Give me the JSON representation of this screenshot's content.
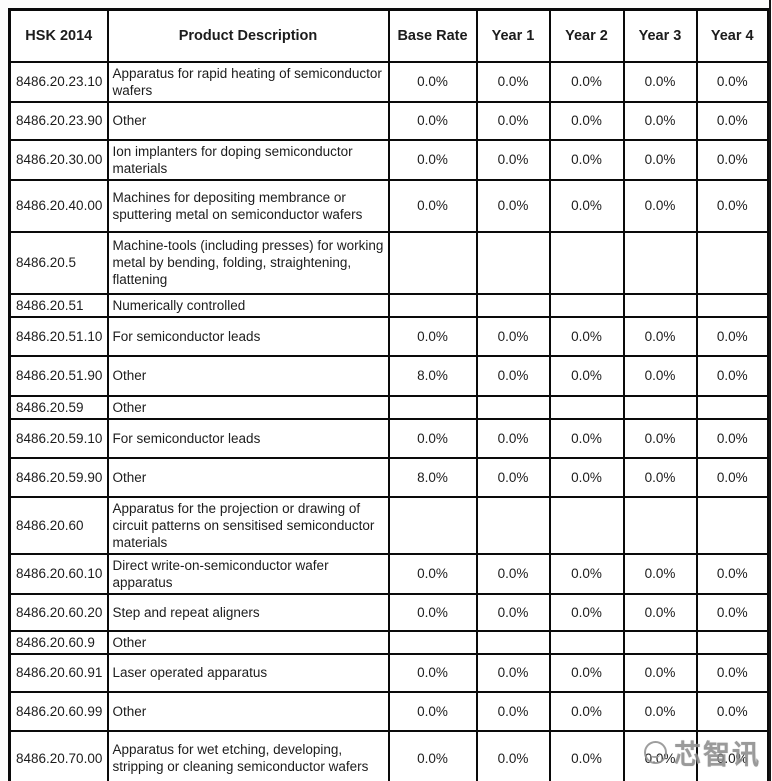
{
  "header": {
    "columns": [
      "HSK 2014",
      "Product Description",
      "Base Rate",
      "Year 1",
      "Year 2",
      "Year 3",
      "Year 4"
    ]
  },
  "table": {
    "rows": [
      {
        "code": "8486.20.23.10",
        "description": "Apparatus for rapid heating of semiconductor wafers",
        "rates": [
          "0.0%",
          "0.0%",
          "0.0%",
          "0.0%",
          "0.0%"
        ]
      },
      {
        "code": "8486.20.23.90",
        "description": "Other",
        "rates": [
          "0.0%",
          "0.0%",
          "0.0%",
          "0.0%",
          "0.0%"
        ]
      },
      {
        "code": "8486.20.30.00",
        "description": "Ion implanters for doping semiconductor materials",
        "rates": [
          "0.0%",
          "0.0%",
          "0.0%",
          "0.0%",
          "0.0%"
        ]
      },
      {
        "code": "8486.20.40.00",
        "description": "Machines for depositing membrance or sputtering metal on semiconductor wafers",
        "rates": [
          "0.0%",
          "0.0%",
          "0.0%",
          "0.0%",
          "0.0%"
        ]
      },
      {
        "code": "8486.20.5",
        "description": "Machine-tools (including presses) for working metal by bending, folding, straightening, flattening",
        "rates": [
          "",
          "",
          "",
          "",
          ""
        ]
      },
      {
        "code": "8486.20.51",
        "description": "Numerically controlled",
        "rates": [
          "",
          "",
          "",
          "",
          ""
        ]
      },
      {
        "code": "8486.20.51.10",
        "description": "For semiconductor leads",
        "rates": [
          "0.0%",
          "0.0%",
          "0.0%",
          "0.0%",
          "0.0%"
        ]
      },
      {
        "code": "8486.20.51.90",
        "description": "Other",
        "rates": [
          "8.0%",
          "0.0%",
          "0.0%",
          "0.0%",
          "0.0%"
        ]
      },
      {
        "code": "8486.20.59",
        "description": "Other",
        "rates": [
          "",
          "",
          "",
          "",
          ""
        ]
      },
      {
        "code": "8486.20.59.10",
        "description": "For semiconductor leads",
        "rates": [
          "0.0%",
          "0.0%",
          "0.0%",
          "0.0%",
          "0.0%"
        ]
      },
      {
        "code": "8486.20.59.90",
        "description": "Other",
        "rates": [
          "8.0%",
          "0.0%",
          "0.0%",
          "0.0%",
          "0.0%"
        ]
      },
      {
        "code": "8486.20.60",
        "description": "Apparatus for the projection or drawing of circuit patterns on sensitised semiconductor materials",
        "rates": [
          "",
          "",
          "",
          "",
          ""
        ]
      },
      {
        "code": "8486.20.60.10",
        "description": "Direct write-on-semiconductor wafer apparatus",
        "rates": [
          "0.0%",
          "0.0%",
          "0.0%",
          "0.0%",
          "0.0%"
        ]
      },
      {
        "code": "8486.20.60.20",
        "description": "Step and repeat aligners",
        "rates": [
          "0.0%",
          "0.0%",
          "0.0%",
          "0.0%",
          "0.0%"
        ]
      },
      {
        "code": "8486.20.60.9",
        "description": "Other",
        "rates": [
          "",
          "",
          "",
          "",
          ""
        ]
      },
      {
        "code": "8486.20.60.91",
        "description": "Laser operated apparatus",
        "rates": [
          "0.0%",
          "0.0%",
          "0.0%",
          "0.0%",
          "0.0%"
        ]
      },
      {
        "code": "8486.20.60.99",
        "description": "Other",
        "rates": [
          "0.0%",
          "0.0%",
          "0.0%",
          "0.0%",
          "0.0%"
        ]
      },
      {
        "code": "8486.20.70.00",
        "description": "Apparatus for wet etching, developing, stripping or cleaning semiconductor wafers",
        "rates": [
          "0.0%",
          "0.0%",
          "0.0%",
          "0.0%",
          "0.0%"
        ]
      }
    ]
  },
  "watermark": {
    "text": "芯智讯"
  },
  "colors": {
    "border": "#0a0a0a",
    "text": "#1c1c1c",
    "background": "#ffffff",
    "watermark": "#8d8d8d"
  }
}
